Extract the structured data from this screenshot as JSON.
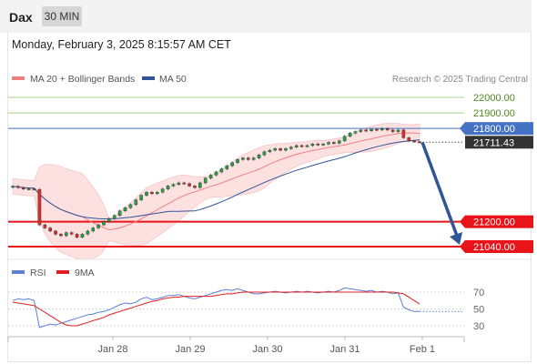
{
  "header": {
    "symbol": "Dax",
    "timeframe": "30 MIN"
  },
  "timestamp": "Monday, February 3, 2025 8:15:57 AM CET",
  "legend": [
    {
      "label": "MA 20 + Bollinger Bands",
      "color": "#f08080"
    },
    {
      "label": "MA 50",
      "color": "#2f5597"
    }
  ],
  "attribution": "Research © 2025 Trading Central",
  "rsi_legend": [
    {
      "label": "RSI",
      "color": "#5b7fd6"
    },
    {
      "label": "9MA",
      "color": "#e02020"
    }
  ],
  "chart_data": {
    "type": "candlestick",
    "x_labels": [
      "Jan 28",
      "Jan 29",
      "Jan 30",
      "Jan 31",
      "Feb 1"
    ],
    "price_range": [
      21000,
      22050
    ],
    "levels": [
      {
        "label": "22000.00",
        "value": 22000,
        "kind": "target",
        "color": "#a7d08c"
      },
      {
        "label": "21900.00",
        "value": 21900,
        "kind": "target",
        "color": "#a7d08c"
      },
      {
        "label": "21800.00",
        "value": 21800,
        "kind": "pivot",
        "color": "#4472c4"
      },
      {
        "label": "21711.43",
        "value": 21711.43,
        "kind": "last",
        "color": "#333333"
      },
      {
        "label": "21200.00",
        "value": 21200,
        "kind": "support",
        "color": "#e8141a"
      },
      {
        "label": "21040.00",
        "value": 21040,
        "kind": "support",
        "color": "#e8141a"
      }
    ],
    "forecast": {
      "from": 21711.43,
      "to": 21040,
      "color": "#2f5597"
    },
    "close": [
      21428,
      21420,
      21410,
      21412,
      21408,
      21180,
      21160,
      21140,
      21120,
      21110,
      21130,
      21120,
      21100,
      21120,
      21140,
      21160,
      21180,
      21200,
      21220,
      21240,
      21270,
      21290,
      21310,
      21340,
      21370,
      21390,
      21380,
      21390,
      21410,
      21430,
      21440,
      21450,
      21445,
      21430,
      21420,
      21450,
      21480,
      21500,
      21520,
      21540,
      21560,
      21580,
      21600,
      21610,
      21600,
      21610,
      21630,
      21650,
      21660,
      21670,
      21660,
      21670,
      21680,
      21690,
      21685,
      21690,
      21700,
      21695,
      21700,
      21710,
      21705,
      21720,
      21750,
      21770,
      21780,
      21790,
      21785,
      21795,
      21790,
      21800,
      21790,
      21780,
      21790,
      21740,
      21720,
      21715,
      21711
    ],
    "rsi_axis": [
      70,
      50,
      30
    ],
    "rsi": [
      60,
      62,
      61,
      62,
      60,
      28,
      30,
      32,
      31,
      33,
      35,
      37,
      39,
      41,
      43,
      44,
      46,
      47,
      49,
      52,
      55,
      57,
      56,
      58,
      62,
      64,
      61,
      62,
      64,
      66,
      66,
      67,
      65,
      63,
      62,
      64,
      66,
      68,
      70,
      72,
      73,
      72,
      74,
      72,
      70,
      68,
      68,
      69,
      70,
      71,
      70,
      69,
      70,
      71,
      70,
      71,
      70,
      69,
      70,
      71,
      70,
      72,
      75,
      74,
      73,
      72,
      71,
      72,
      70,
      71,
      70,
      68,
      69,
      52,
      49,
      47,
      47
    ],
    "rsi_ma": [
      58,
      57,
      56,
      55,
      54,
      50,
      46,
      42,
      38,
      34,
      31,
      30,
      30,
      32,
      34,
      36,
      38,
      40,
      43,
      45,
      47,
      49,
      51,
      53,
      55,
      57,
      59,
      60,
      62,
      63,
      64,
      64,
      65,
      65,
      65,
      65,
      65,
      65,
      66,
      67,
      68,
      68,
      69,
      70,
      70,
      70,
      70,
      70,
      70,
      70,
      70,
      70,
      70,
      70,
      70,
      70,
      70,
      70,
      70,
      70,
      70,
      70,
      70,
      70,
      70,
      70,
      70,
      70,
      70,
      70,
      70,
      70,
      69,
      68,
      64,
      60,
      56
    ]
  }
}
